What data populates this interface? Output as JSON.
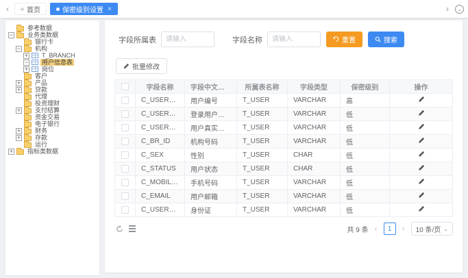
{
  "colors": {
    "accent_blue": "#3d8af2",
    "accent_orange": "#f59b22",
    "tree_selected_bg": "#f3cf7d",
    "table_header_bg": "#f7f8fa",
    "page_bg": "#eef0f4"
  },
  "icons": {
    "tabs_scroll_left": "‹",
    "tabs_scroll_right": "›",
    "tab_close": "×",
    "tab_actions": "⌄",
    "expander_collapsed": "+",
    "expander_expanded": "−",
    "page_prev": "‹",
    "page_next": "›",
    "select_caret": "⌄"
  },
  "tab_bar": {
    "tabs": [
      {
        "label": "首页",
        "active": false
      },
      {
        "label": "保密级别设置",
        "active": true
      }
    ]
  },
  "sidebar": {
    "tree": [
      {
        "label": "参考数据",
        "level": 1,
        "icon": "folder",
        "expander": null,
        "selected": false
      },
      {
        "label": "业务类数据",
        "level": 1,
        "icon": "folder",
        "expander": "minus",
        "selected": false
      },
      {
        "label": "银行卡",
        "level": 2,
        "icon": "folder",
        "expander": null,
        "selected": false
      },
      {
        "label": "机构",
        "level": 2,
        "icon": "folder",
        "expander": "minus",
        "selected": false
      },
      {
        "label": "T_BRANCH",
        "level": 3,
        "icon": "table",
        "expander": "plus",
        "selected": false
      },
      {
        "label": "用户信息表",
        "level": 3,
        "icon": "table",
        "expander": "minus",
        "selected": true
      },
      {
        "label": "岗位",
        "level": 3,
        "icon": "table",
        "expander": "plus",
        "selected": false
      },
      {
        "label": "客户",
        "level": 2,
        "icon": "folder",
        "expander": null,
        "selected": false
      },
      {
        "label": "产品",
        "level": 2,
        "icon": "folder",
        "expander": "plus",
        "selected": false
      },
      {
        "label": "贷款",
        "level": 2,
        "icon": "folder",
        "expander": "plus",
        "selected": false
      },
      {
        "label": "代理",
        "level": 2,
        "icon": "folder",
        "expander": null,
        "selected": false
      },
      {
        "label": "投资理财",
        "level": 2,
        "icon": "folder",
        "expander": null,
        "selected": false
      },
      {
        "label": "支付结算",
        "level": 2,
        "icon": "folder",
        "expander": "plus",
        "selected": false
      },
      {
        "label": "资金交易",
        "level": 2,
        "icon": "folder",
        "expander": null,
        "selected": false
      },
      {
        "label": "电子银行",
        "level": 2,
        "icon": "folder",
        "expander": null,
        "selected": false
      },
      {
        "label": "财务",
        "level": 2,
        "icon": "folder",
        "expander": "plus",
        "selected": false
      },
      {
        "label": "存款",
        "level": 2,
        "icon": "folder",
        "expander": "plus",
        "selected": false
      },
      {
        "label": "运行",
        "level": 2,
        "icon": "folder",
        "expander": null,
        "selected": false
      },
      {
        "label": "指标类数据",
        "level": 1,
        "icon": "folder",
        "expander": "plus",
        "selected": false
      }
    ]
  },
  "search_form": {
    "fields": [
      {
        "label": "字段所属表",
        "placeholder": "请输入",
        "value": ""
      },
      {
        "label": "字段名称",
        "placeholder": "请输入",
        "value": ""
      }
    ],
    "reset_button": "重置",
    "search_button": "搜索"
  },
  "toolbar": {
    "batch_edit_button": "批量修改"
  },
  "table": {
    "columns": [
      "字段名称",
      "字段中文名称",
      "所属表名称",
      "字段类型",
      "保密级别",
      "操作"
    ],
    "rows": [
      {
        "field": "C_USER_ID",
        "cn": "用户编号",
        "table": "T_USER",
        "type": "VARCHAR",
        "level": "高"
      },
      {
        "field": "C_USER_CODE",
        "cn": "登录用户号码",
        "table": "T_USER",
        "type": "VARCHAR",
        "level": "低"
      },
      {
        "field": "C_USER_NAME",
        "cn": "用户真实姓名",
        "table": "T_USER",
        "type": "VARCHAR",
        "level": "低"
      },
      {
        "field": "C_BR_ID",
        "cn": "机构号码",
        "table": "T_USER",
        "type": "VARCHAR",
        "level": "低"
      },
      {
        "field": "C_SEX",
        "cn": "性别",
        "table": "T_USER",
        "type": "CHAR",
        "level": "低"
      },
      {
        "field": "C_STATUS",
        "cn": "用户状态",
        "table": "T_USER",
        "type": "CHAR",
        "level": "低"
      },
      {
        "field": "C_MOBILE_PHONE",
        "cn": "手机号码",
        "table": "T_USER",
        "type": "VARCHAR",
        "level": "低"
      },
      {
        "field": "C_EMAIL",
        "cn": "用户邮箱",
        "table": "T_USER",
        "type": "VARCHAR",
        "level": "低"
      },
      {
        "field": "C_USER_IDENTITY",
        "cn": "身份证",
        "table": "T_USER",
        "type": "VARCHAR",
        "level": "低"
      }
    ]
  },
  "pagination": {
    "total_text": "共 9 条",
    "current_page": "1",
    "page_size_text": "10 条/页"
  }
}
